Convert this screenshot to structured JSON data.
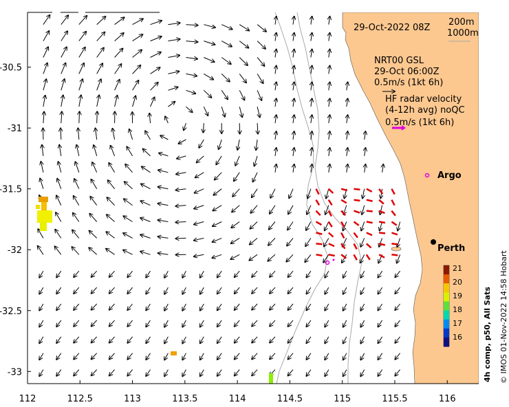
{
  "map": {
    "date_title": "29-Oct-2022 08Z",
    "depth_contour_1": "200m",
    "depth_contour_2": "1000m",
    "model_title": "NRT00 GSL",
    "model_time": "29-Oct 06:00Z",
    "model_scale": "0.5m/s (1kt 6h)",
    "radar_title": "HF radar velocity",
    "radar_subtitle": "(4-12h avg) noQC",
    "radar_scale": "0.5m/s (1kt 6h)",
    "places": [
      {
        "name": "Argo",
        "lon": 115.69,
        "lat": -31.58
      },
      {
        "name": "Perth",
        "lon": 115.86,
        "lat": -31.95
      }
    ],
    "colorbar": {
      "title": "4h comp, p50, All Sats",
      "ticks": [
        "21",
        "20",
        "19",
        "18",
        "17",
        "16"
      ],
      "colors": [
        "#8b1a00",
        "#e85a00",
        "#f4c800",
        "#d8f000",
        "#5ce03c",
        "#00d8b0",
        "#008cf0",
        "#0038c8",
        "#101080"
      ]
    },
    "credit": "© IMOS 01-Nov-2022 14:58 Hobart",
    "colors": {
      "land": "#fcc890",
      "arrow": "#000000",
      "radar_arrow": "#e00000",
      "argo": "#e000e0",
      "contour": "#a8a8a8"
    }
  },
  "axes": {
    "x_ticks": [
      "112",
      "112.5",
      "113",
      "113.5",
      "114",
      "114.5",
      "115",
      "115.5",
      "116"
    ],
    "y_ticks": [
      "-30.5",
      "-31",
      "-31.5",
      "-32",
      "-32.5",
      "-33"
    ],
    "xlim": [
      112,
      116.3
    ],
    "ylim": [
      -33.1,
      -30.05
    ]
  },
  "chart_data": {
    "type": "map-vector-field",
    "title": "29-Oct-2022 08Z",
    "lon_range": [
      112,
      116.3
    ],
    "lat_range": [
      -33.1,
      -30.05
    ],
    "eddy_center": {
      "lon": 113.4,
      "lat": -30.9,
      "direction": "clockwise"
    },
    "hf_radar_lon_range": [
      114.75,
      115.5
    ],
    "hf_radar_lat_range": [
      -32.1,
      -31.5
    ]
  }
}
